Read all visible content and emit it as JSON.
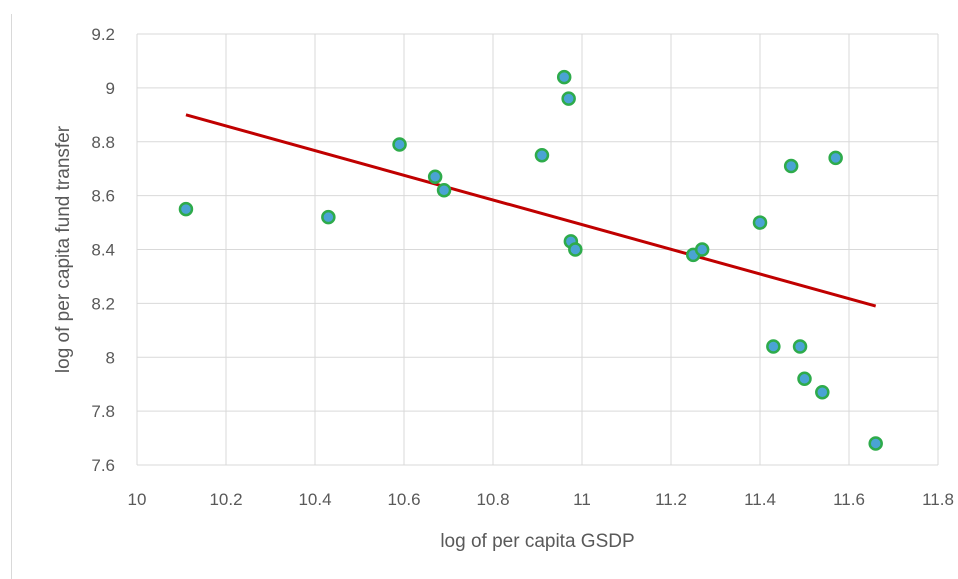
{
  "chart_data": {
    "type": "scatter",
    "title": "",
    "xlabel": "log of per capita GSDP",
    "ylabel": "log of per capita fund transfer",
    "xlim": [
      10,
      11.8
    ],
    "ylim": [
      7.6,
      9.2
    ],
    "x_ticks": [
      "10",
      "10.2",
      "10.4",
      "10.6",
      "10.8",
      "11",
      "11.2",
      "11.4",
      "11.6",
      "11.8"
    ],
    "y_ticks": [
      "7.6",
      "7.8",
      "8",
      "8.2",
      "8.4",
      "8.6",
      "8.8",
      "9",
      "9.2"
    ],
    "x_tick_values": [
      10,
      10.2,
      10.4,
      10.6,
      10.8,
      11,
      11.2,
      11.4,
      11.6,
      11.8
    ],
    "y_tick_values": [
      7.6,
      7.8,
      8,
      8.2,
      8.4,
      8.6,
      8.8,
      9,
      9.2
    ],
    "grid": true,
    "points": [
      {
        "x": 10.11,
        "y": 8.55
      },
      {
        "x": 10.43,
        "y": 8.52
      },
      {
        "x": 10.59,
        "y": 8.79
      },
      {
        "x": 10.67,
        "y": 8.67
      },
      {
        "x": 10.69,
        "y": 8.62
      },
      {
        "x": 10.91,
        "y": 8.75
      },
      {
        "x": 10.96,
        "y": 9.04
      },
      {
        "x": 10.97,
        "y": 8.96
      },
      {
        "x": 10.975,
        "y": 8.43
      },
      {
        "x": 10.985,
        "y": 8.4
      },
      {
        "x": 11.25,
        "y": 8.38
      },
      {
        "x": 11.27,
        "y": 8.4
      },
      {
        "x": 11.4,
        "y": 8.5
      },
      {
        "x": 11.43,
        "y": 8.04
      },
      {
        "x": 11.47,
        "y": 8.71
      },
      {
        "x": 11.49,
        "y": 8.04
      },
      {
        "x": 11.5,
        "y": 7.92
      },
      {
        "x": 11.54,
        "y": 7.87
      },
      {
        "x": 11.57,
        "y": 8.74
      },
      {
        "x": 11.66,
        "y": 7.68
      }
    ],
    "trendline": {
      "x": [
        10.11,
        11.66
      ],
      "y": [
        8.9,
        8.19
      ]
    },
    "colors": {
      "marker_fill": "#4aa3d4",
      "marker_stroke": "#2eab4b",
      "trendline": "#c00000",
      "grid": "#d9d9d9",
      "text": "#595959"
    }
  }
}
